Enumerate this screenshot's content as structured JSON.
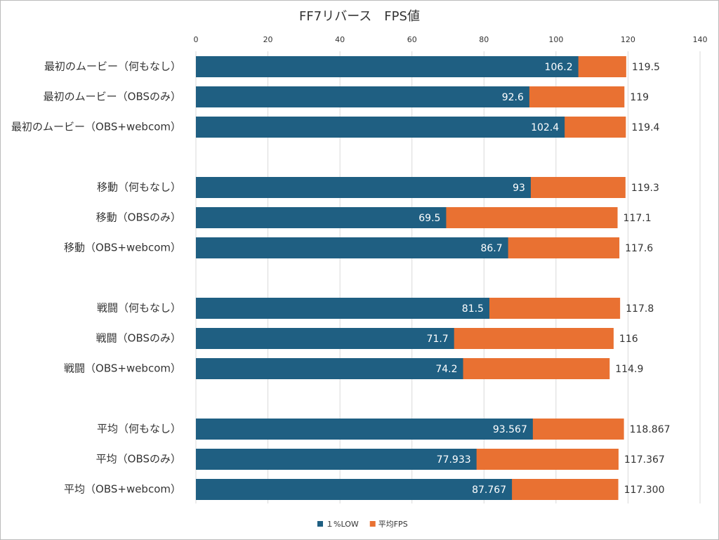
{
  "chart_data": {
    "type": "bar",
    "orientation": "horizontal",
    "overlap": true,
    "title": "FF7リバース　FPS値",
    "categories": [
      "最初のムービー（何もなし）",
      "最初のムービー（OBSのみ）",
      "最初のムービー（OBS+webcom）",
      null,
      "移動（何もなし）",
      "移動（OBSのみ）",
      "移動（OBS+webcom）",
      null,
      "戦闘（何もなし）",
      "戦闘（OBSのみ）",
      "戦闘（OBS+webcom）",
      null,
      "平均（何もなし）",
      "平均（OBSのみ）",
      "平均（OBS+webcom）"
    ],
    "series": [
      {
        "name": "平均FPS",
        "color": "#e97132",
        "values": [
          119.5,
          119,
          119.4,
          null,
          119.3,
          117.1,
          117.6,
          null,
          117.8,
          116,
          114.9,
          null,
          118.867,
          117.367,
          117.3
        ],
        "value_labels": [
          "119.5",
          "119",
          "119.4",
          null,
          "119.3",
          "117.1",
          "117.6",
          null,
          "117.8",
          "116",
          "114.9",
          null,
          "118.867",
          "117.367",
          "117.300"
        ]
      },
      {
        "name": "１%LOW",
        "color": "#1f5f82",
        "values": [
          106.2,
          92.6,
          102.4,
          null,
          93,
          69.5,
          86.7,
          null,
          81.5,
          71.7,
          74.2,
          null,
          93.567,
          77.933,
          87.767
        ]
      }
    ],
    "xlim": [
      0,
      140
    ],
    "xticks": [
      0,
      20,
      40,
      60,
      80,
      100,
      120,
      140
    ],
    "grid": true,
    "legend": "bottom"
  }
}
